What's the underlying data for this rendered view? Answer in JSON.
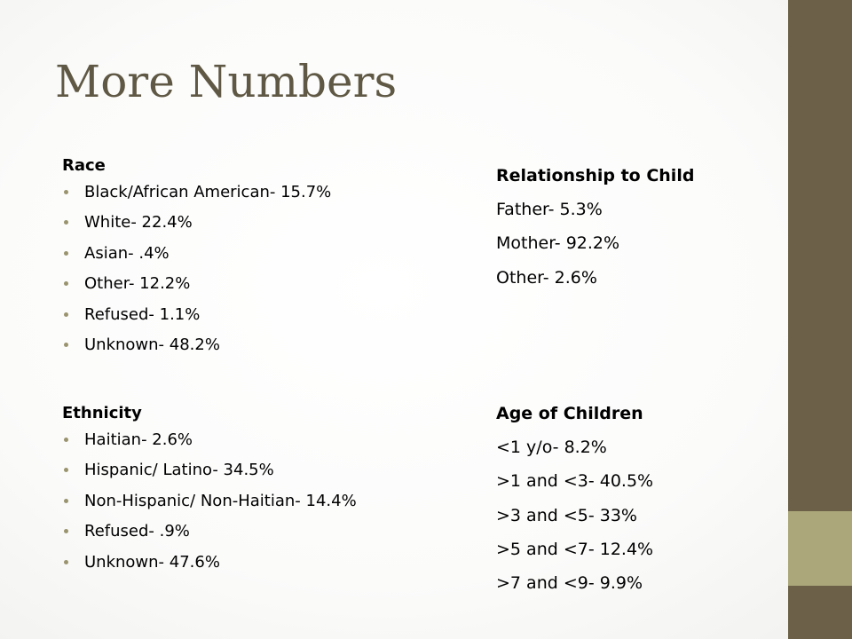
{
  "slide": {
    "title": "More Numbers"
  },
  "race": {
    "heading": "Race",
    "items": [
      "Black/African American- 15.7%",
      "White- 22.4%",
      "Asian- .4%",
      "Other- 12.2%",
      "Refused- 1.1%",
      "Unknown- 48.2%"
    ]
  },
  "ethnicity": {
    "heading": "Ethnicity",
    "items": [
      "Haitian- 2.6%",
      "Hispanic/ Latino- 34.5%",
      "Non-Hispanic/ Non-Haitian- 14.4%",
      "Refused- .9%",
      "Unknown- 47.6%"
    ]
  },
  "relationship": {
    "heading": "Relationship to Child",
    "items": [
      "Father- 5.3%",
      "Mother- 92.2%",
      "Other- 2.6%"
    ]
  },
  "age": {
    "heading": "Age of Children",
    "items": [
      "<1 y/o- 8.2%",
      ">1 and <3- 40.5%",
      ">3 and <5- 33%",
      ">5 and <7- 12.4%",
      ">7 and <9- 9.9%"
    ]
  },
  "theme": {
    "title_color": "#5f5844",
    "sidebar_dark": "#6c6148",
    "sidebar_light": "#aba77a",
    "bullet_color": "#9a946e"
  }
}
